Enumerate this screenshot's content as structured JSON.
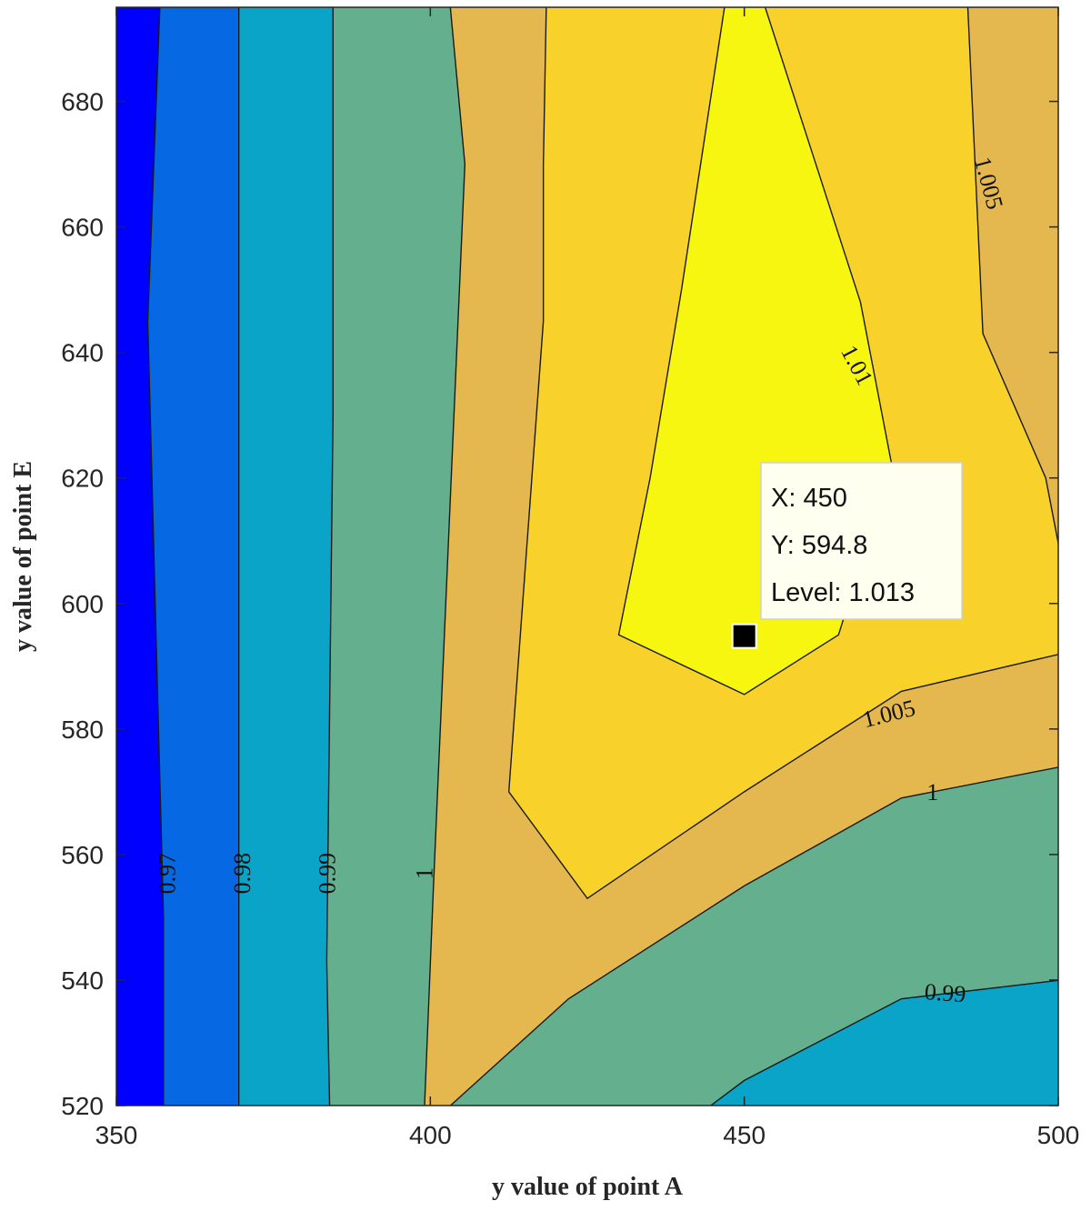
{
  "chart_data": {
    "type": "contour",
    "xlabel": "y value of point A",
    "ylabel": "y value of point E",
    "xlim": [
      350,
      500
    ],
    "ylim": [
      520,
      695
    ],
    "x_ticks": [
      350,
      400,
      450,
      500
    ],
    "y_ticks": [
      520,
      540,
      560,
      580,
      600,
      620,
      640,
      660,
      680
    ],
    "grid": false,
    "contour_levels": [
      0.97,
      0.98,
      0.99,
      1.0,
      1.005,
      1.01
    ],
    "level_colors": {
      "below_0.97": "#0000ff",
      "0.97-0.98": "#0668e3",
      "0.98-0.99": "#09a4c8",
      "0.99-1.0": "#64b08e",
      "1.0-1.005": "#e5b84f",
      "1.005-1.01": "#f8d22a",
      "above_1.01": "#f6f610"
    },
    "contour_labels": [
      {
        "text": "0.97",
        "x": 358,
        "y": 557
      },
      {
        "text": "0.98",
        "x": 370,
        "y": 557
      },
      {
        "text": "0.99",
        "x": 383.5,
        "y": 557
      },
      {
        "text": "1",
        "x": 399,
        "y": 557
      },
      {
        "text": "0.99",
        "x": 482,
        "y": 538
      },
      {
        "text": "1",
        "x": 480,
        "y": 570
      },
      {
        "text": "1.005",
        "x": 473,
        "y": 582.5
      },
      {
        "text": "1.01",
        "x": 468,
        "y": 638
      },
      {
        "text": "1.005",
        "x": 489,
        "y": 667
      }
    ],
    "datatip": {
      "x": 450,
      "y": 594.8,
      "level": 1.013,
      "lines": [
        "X: 450",
        "Y: 594.8",
        "Level: 1.013"
      ]
    }
  }
}
